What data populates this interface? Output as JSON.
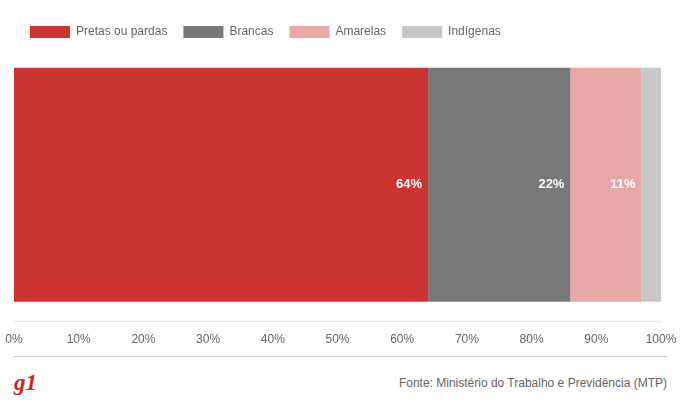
{
  "chart_data": {
    "type": "bar",
    "orientation": "horizontal",
    "stacked": true,
    "categories": [
      null
    ],
    "series": [
      {
        "name": "Pretas ou pardas",
        "color": "#cc3333",
        "values": [
          64
        ],
        "value_labels": [
          "64%"
        ]
      },
      {
        "name": "Brancas",
        "color": "#787878",
        "values": [
          22
        ],
        "value_labels": [
          "22%"
        ]
      },
      {
        "name": "Amarelas",
        "color": "#e8a8a8",
        "values": [
          11
        ],
        "value_labels": [
          "11%"
        ]
      },
      {
        "name": "Indígenas",
        "color": "#c8c8c8",
        "values": [
          3
        ],
        "value_labels": [
          null
        ]
      }
    ],
    "xlim": [
      0,
      100
    ],
    "xticks": [
      {
        "value": 0,
        "label": "0%"
      },
      {
        "value": 10,
        "label": "10%"
      },
      {
        "value": 20,
        "label": "20%"
      },
      {
        "value": 30,
        "label": "30%"
      },
      {
        "value": 40,
        "label": "40%"
      },
      {
        "value": 50,
        "label": "50%"
      },
      {
        "value": 60,
        "label": "60%"
      },
      {
        "value": 70,
        "label": "70%"
      },
      {
        "value": 80,
        "label": "80%"
      },
      {
        "value": 90,
        "label": "90%"
      },
      {
        "value": 100,
        "label": "100%"
      }
    ],
    "grid": false,
    "legend": "top left",
    "data_labels": true,
    "tick_labels": "x",
    "annotations": [
      {
        "text": "g1",
        "color": "#cc2222"
      },
      {
        "text": "Fonte: Ministério do Trabalho e Previdência (MTP)"
      }
    ]
  }
}
